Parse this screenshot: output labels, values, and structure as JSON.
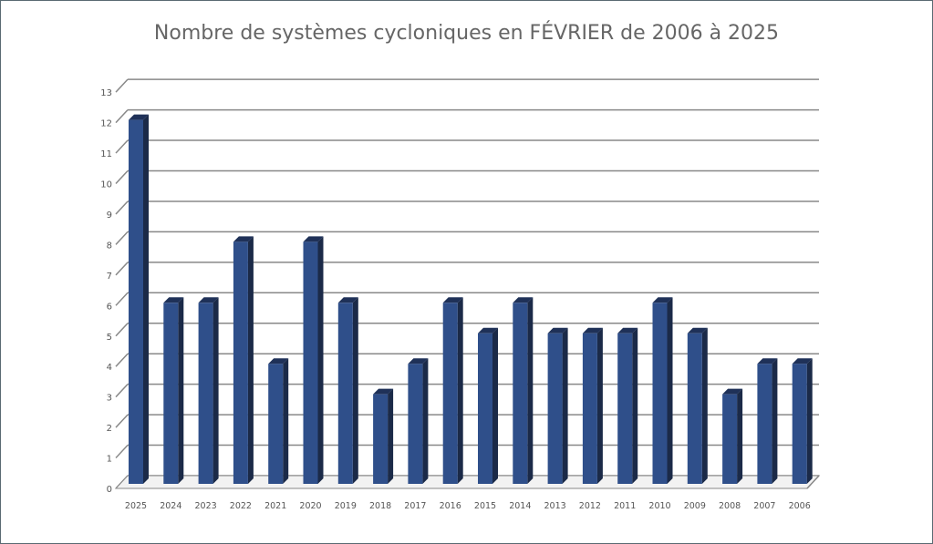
{
  "chart_data": {
    "type": "bar",
    "title": "Nombre de systèmes cycloniques en FÉVRIER de 2006 à 2025",
    "xlabel": "",
    "ylabel": "",
    "categories": [
      "2025",
      "2024",
      "2023",
      "2022",
      "2021",
      "2020",
      "2019",
      "2018",
      "2017",
      "2016",
      "2015",
      "2014",
      "2013",
      "2012",
      "2011",
      "2010",
      "2009",
      "2008",
      "2007",
      "2006"
    ],
    "values": [
      12,
      6,
      6,
      8,
      4,
      8,
      6,
      3,
      4,
      6,
      5,
      6,
      5,
      5,
      5,
      6,
      5,
      3,
      4,
      4
    ],
    "ylim": [
      0,
      13
    ],
    "yticks": [
      "0",
      "1",
      "2",
      "3",
      "4",
      "5",
      "6",
      "7",
      "8",
      "9",
      "10",
      "11",
      "12",
      "13"
    ],
    "grid": true,
    "legend": "none",
    "colors": {
      "bar_front": "#2f4f8a",
      "bar_side": "#1b2a48",
      "bar_top": "#1f3158",
      "grid": "#888888"
    }
  }
}
